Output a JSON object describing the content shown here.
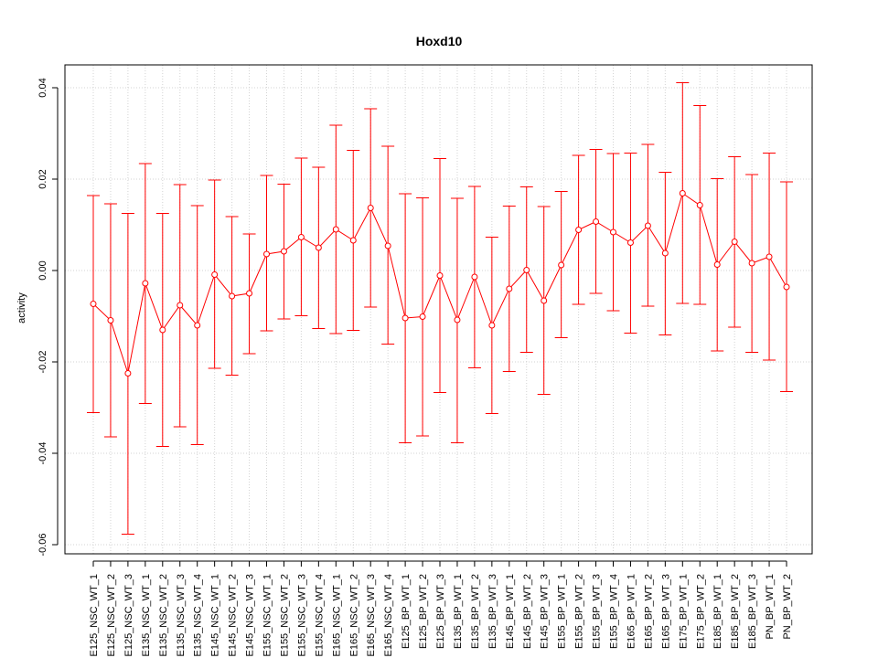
{
  "chart_data": {
    "type": "line",
    "title": "Hoxd10",
    "xlabel": "",
    "ylabel": "activity",
    "ylim": [
      -0.062,
      0.045
    ],
    "yticks": [
      -0.06,
      -0.04,
      -0.02,
      0.0,
      0.02,
      0.04
    ],
    "ytick_labels": [
      "-0.06",
      "-0.04",
      "-0.02",
      "0.00",
      "0.02",
      "0.04"
    ],
    "grid": true,
    "series_color": "#ff0000",
    "categories": [
      "E125_NSC_WT_1",
      "E125_NSC_WT_2",
      "E125_NSC_WT_3",
      "E135_NSC_WT_1",
      "E135_NSC_WT_2",
      "E135_NSC_WT_3",
      "E135_NSC_WT_4",
      "E145_NSC_WT_1",
      "E145_NSC_WT_2",
      "E145_NSC_WT_3",
      "E155_NSC_WT_1",
      "E155_NSC_WT_2",
      "E155_NSC_WT_3",
      "E155_NSC_WT_4",
      "E165_NSC_WT_1",
      "E165_NSC_WT_2",
      "E165_NSC_WT_3",
      "E165_NSC_WT_4",
      "E125_BP_WT_1",
      "E125_BP_WT_2",
      "E125_BP_WT_3",
      "E135_BP_WT_1",
      "E135_BP_WT_2",
      "E135_BP_WT_3",
      "E145_BP_WT_1",
      "E145_BP_WT_2",
      "E145_BP_WT_3",
      "E155_BP_WT_1",
      "E155_BP_WT_2",
      "E155_BP_WT_3",
      "E155_BP_WT_4",
      "E165_BP_WT_1",
      "E165_BP_WT_2",
      "E165_BP_WT_3",
      "E175_BP_WT_1",
      "E175_BP_WT_2",
      "E185_BP_WT_1",
      "E185_BP_WT_2",
      "E185_BP_WT_3",
      "PN_BP_WT_1",
      "PN_BP_WT_2"
    ],
    "values": [
      -0.0073,
      -0.0109,
      -0.0225,
      -0.0028,
      -0.013,
      -0.0076,
      -0.012,
      -0.0009,
      -0.0056,
      -0.005,
      0.0036,
      0.0042,
      0.0073,
      0.005,
      0.009,
      0.0066,
      0.0137,
      0.0054,
      -0.0104,
      -0.0101,
      -0.0011,
      -0.0108,
      -0.0014,
      -0.012,
      -0.004,
      0.0001,
      -0.0066,
      0.0012,
      0.0089,
      0.0107,
      0.0084,
      0.0061,
      0.0098,
      0.0038,
      0.0169,
      0.0143,
      0.0013,
      0.0063,
      0.0016,
      0.003,
      -0.0036
    ],
    "upper": [
      0.0164,
      0.0146,
      0.0125,
      0.0234,
      0.0125,
      0.0188,
      0.0142,
      0.0198,
      0.0118,
      0.008,
      0.0208,
      0.0189,
      0.0246,
      0.0226,
      0.0318,
      0.0263,
      0.0354,
      0.0272,
      0.0168,
      0.0159,
      0.0245,
      0.0158,
      0.0184,
      0.0073,
      0.0141,
      0.0183,
      0.014,
      0.0173,
      0.0252,
      0.0265,
      0.0256,
      0.0257,
      0.0276,
      0.0215,
      0.0411,
      0.0361,
      0.0201,
      0.0249,
      0.021,
      0.0257,
      0.0194
    ],
    "lower": [
      -0.0311,
      -0.0364,
      -0.0577,
      -0.0291,
      -0.0385,
      -0.0342,
      -0.0381,
      -0.0214,
      -0.0229,
      -0.0182,
      -0.0132,
      -0.0106,
      -0.0099,
      -0.0127,
      -0.0138,
      -0.0131,
      -0.008,
      -0.0161,
      -0.0377,
      -0.0362,
      -0.0267,
      -0.0377,
      -0.0213,
      -0.0313,
      -0.0221,
      -0.0179,
      -0.0271,
      -0.0147,
      -0.0074,
      -0.005,
      -0.0088,
      -0.0137,
      -0.0078,
      -0.0141,
      -0.0072,
      -0.0074,
      -0.0176,
      -0.0124,
      -0.0179,
      -0.0196,
      -0.0265
    ]
  }
}
